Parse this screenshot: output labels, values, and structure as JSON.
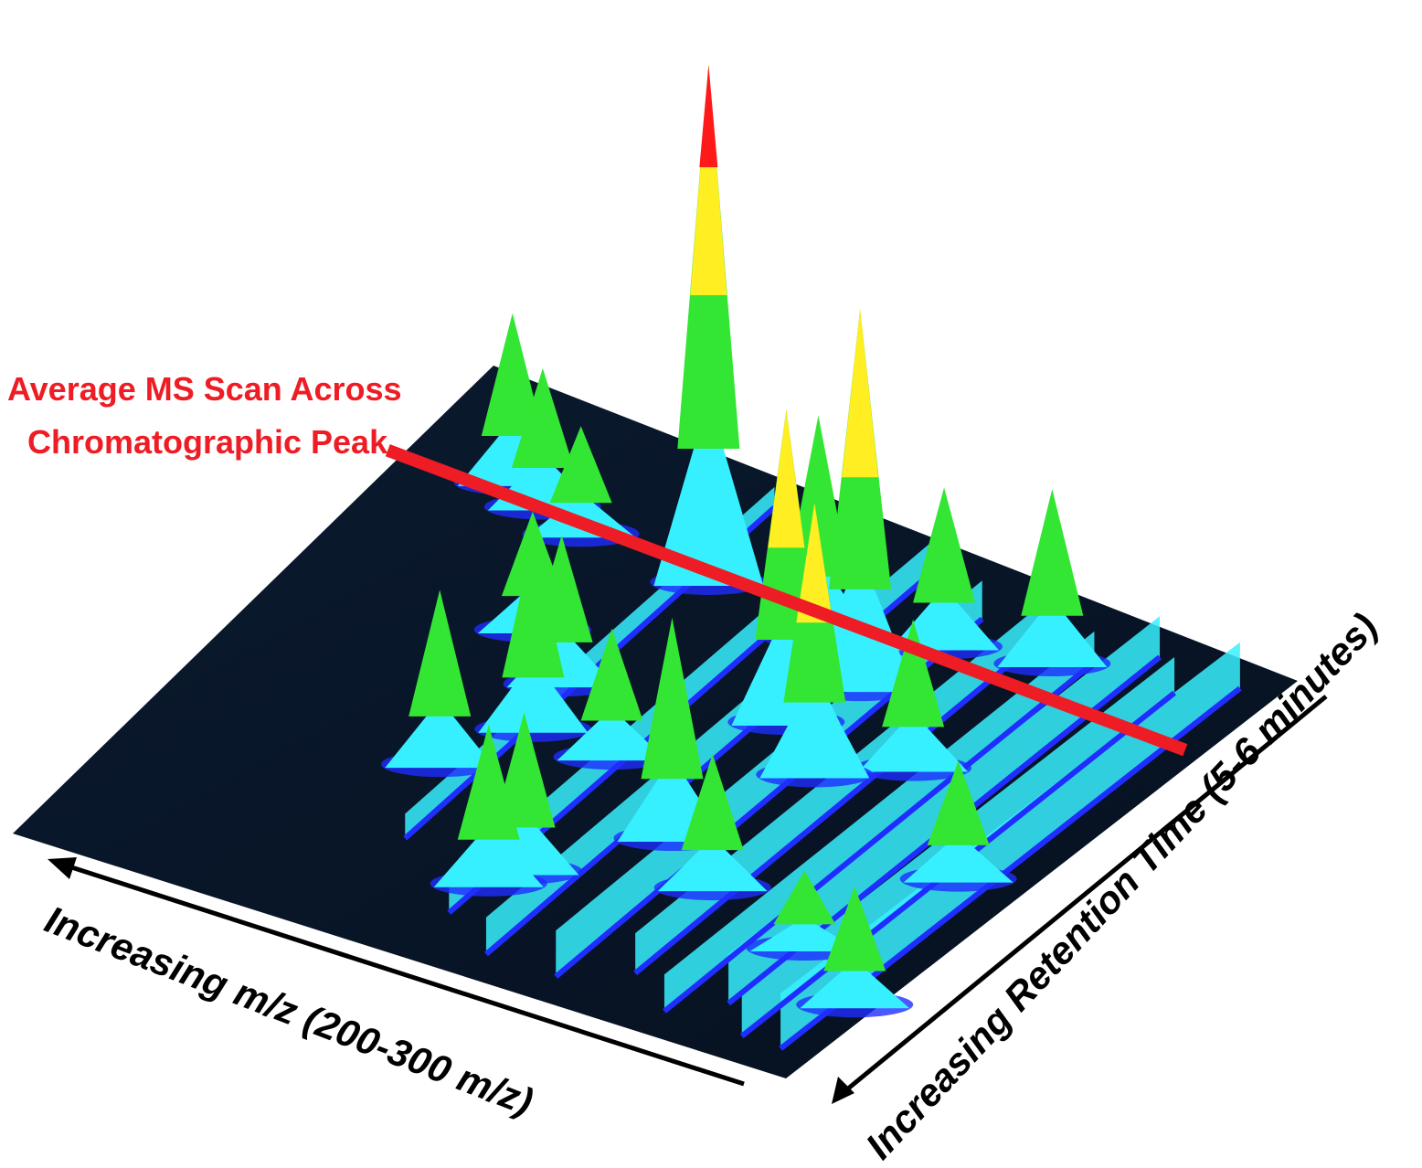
{
  "chart_data": {
    "type": "surface3d",
    "title": "",
    "annotation": {
      "lines": [
        "Average MS Scan Across",
        "Chromatographic Peak"
      ],
      "color": "#ee1c24"
    },
    "xlabel": "Increasing m/z (200-300 m/z)",
    "ylabel": "Increasing Retention Time (5-6 minutes)",
    "xlim": [
      200,
      300
    ],
    "ylim": [
      5,
      6
    ],
    "grid": false,
    "legend": "none",
    "color_scale": [
      "#0a1a33",
      "#1f2dff",
      "#37f0ff",
      "#33e633",
      "#ffee22",
      "#ff1a1a"
    ],
    "ridges": [
      {
        "mz": 204,
        "t_start": 5.05,
        "t_end": 5.95,
        "height": 0.18
      },
      {
        "mz": 209,
        "t_start": 5.05,
        "t_end": 5.9,
        "height": 0.14
      },
      {
        "mz": 214,
        "t_start": 5.1,
        "t_end": 5.95,
        "height": 0.16
      },
      {
        "mz": 219,
        "t_start": 5.05,
        "t_end": 5.9,
        "height": 0.12
      },
      {
        "mz": 226,
        "t_start": 5.1,
        "t_end": 5.95,
        "height": 0.13
      },
      {
        "mz": 233,
        "t_start": 5.05,
        "t_end": 5.9,
        "height": 0.15
      },
      {
        "mz": 242,
        "t_start": 5.05,
        "t_end": 5.95,
        "height": 0.12
      },
      {
        "mz": 250,
        "t_start": 5.1,
        "t_end": 5.95,
        "height": 0.1
      },
      {
        "mz": 262,
        "t_start": 5.2,
        "t_end": 5.95,
        "height": 0.08
      }
    ],
    "peaks": [
      {
        "mz": 203,
        "t": 5.18,
        "height": 0.22
      },
      {
        "mz": 208,
        "t": 5.46,
        "height": 0.22
      },
      {
        "mz": 214,
        "t": 5.25,
        "height": 0.14
      },
      {
        "mz": 223,
        "t": 5.88,
        "height": 0.33
      },
      {
        "mz": 224,
        "t": 5.62,
        "height": 0.28
      },
      {
        "mz": 229,
        "t": 5.3,
        "height": 0.25
      },
      {
        "mz": 232,
        "t": 5.55,
        "height": 0.52
      },
      {
        "mz": 234,
        "t": 5.84,
        "height": 0.3
      },
      {
        "mz": 237,
        "t": 5.72,
        "height": 0.73
      },
      {
        "mz": 238,
        "t": 5.36,
        "height": 0.42
      },
      {
        "mz": 240,
        "t": 5.62,
        "height": 0.6
      },
      {
        "mz": 246,
        "t": 5.78,
        "height": 0.42
      },
      {
        "mz": 248,
        "t": 5.22,
        "height": 0.3
      },
      {
        "mz": 250,
        "t": 5.18,
        "height": 0.3
      },
      {
        "mz": 252,
        "t": 5.46,
        "height": 0.24
      },
      {
        "mz": 261,
        "t": 5.8,
        "height": 1.0
      },
      {
        "mz": 262,
        "t": 5.46,
        "height": 0.36
      },
      {
        "mz": 264,
        "t": 5.55,
        "height": 0.28
      },
      {
        "mz": 267,
        "t": 5.35,
        "height": 0.33
      },
      {
        "mz": 272,
        "t": 5.62,
        "height": 0.22
      },
      {
        "mz": 277,
        "t": 5.8,
        "height": 0.2
      },
      {
        "mz": 283,
        "t": 5.82,
        "height": 0.26
      },
      {
        "mz": 288,
        "t": 5.84,
        "height": 0.32
      }
    ],
    "average_scan_line": {
      "t": 5.78,
      "mz_from": 200,
      "mz_to": 300
    }
  }
}
